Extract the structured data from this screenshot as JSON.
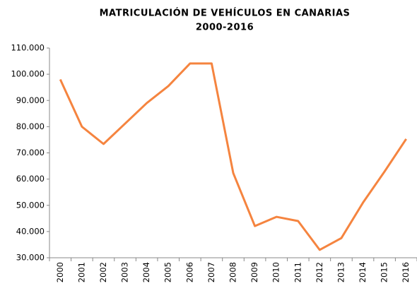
{
  "chart_data": {
    "type": "line",
    "title": "MATRICULACIÓN  DE VEHÍCULOS  EN CANARIAS",
    "subtitle": "2000-2016",
    "categories": [
      "2000",
      "2001",
      "2002",
      "2003",
      "2004",
      "2005",
      "2006",
      "2007",
      "2008",
      "2009",
      "2010",
      "2011",
      "2012",
      "2013",
      "2014",
      "2015",
      "2016"
    ],
    "series": [
      {
        "color": "#f5843f",
        "values": [
          98000,
          80000,
          73400,
          81200,
          89000,
          95500,
          104100,
          104100,
          62300,
          42100,
          45600,
          44000,
          33000,
          37500,
          51000,
          62900,
          75300
        ]
      }
    ],
    "ylim": [
      30000,
      110000
    ],
    "yticks": [
      {
        "value": 30000,
        "label": "30.000"
      },
      {
        "value": 40000,
        "label": "40.000"
      },
      {
        "value": 50000,
        "label": "50.000"
      },
      {
        "value": 60000,
        "label": "60.000"
      },
      {
        "value": 70000,
        "label": "70.000"
      },
      {
        "value": 80000,
        "label": "80.000"
      },
      {
        "value": 90000,
        "label": "90.000"
      },
      {
        "value": 100000,
        "label": "100.000"
      },
      {
        "value": 110000,
        "label": "110.000"
      }
    ],
    "grid": false
  }
}
